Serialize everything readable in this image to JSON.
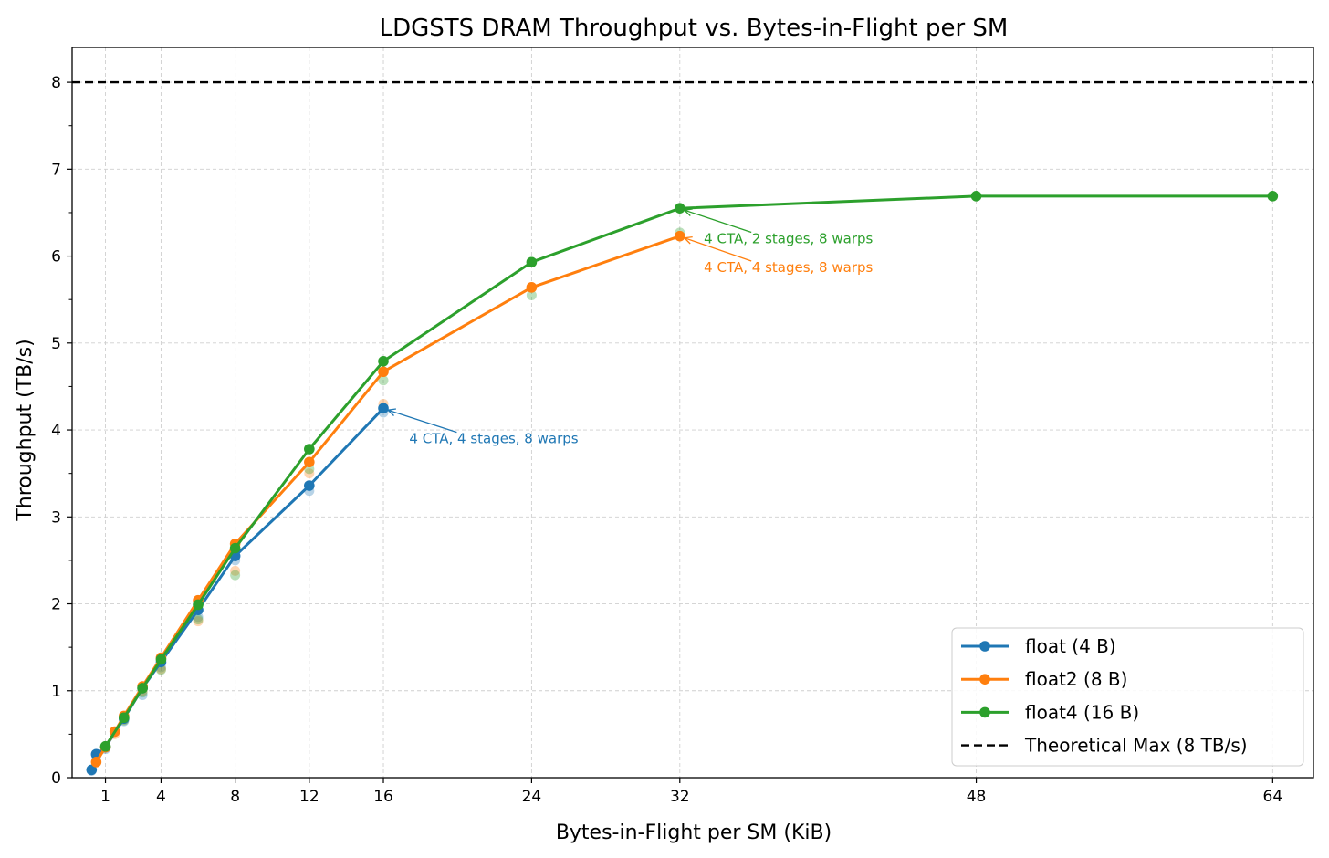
{
  "chart_data": {
    "type": "line",
    "title": "LDGSTS DRAM Throughput vs. Bytes-in-Flight per SM",
    "xlabel": "Bytes-in-Flight per SM (KiB)",
    "ylabel": "Throughput (TB/s)",
    "xlim": [
      -0.8,
      66.2
    ],
    "ylim": [
      0,
      8.4
    ],
    "xticks": [
      1,
      4,
      8,
      12,
      16,
      24,
      32,
      48,
      64
    ],
    "xtick_labels": [
      "1",
      "4",
      "8",
      "12",
      "16",
      "24",
      "32",
      "48",
      "64"
    ],
    "yticks": [
      0,
      1,
      2,
      3,
      4,
      5,
      6,
      7,
      8
    ],
    "ytick_labels": [
      "0",
      "1",
      "2",
      "3",
      "4",
      "5",
      "6",
      "7",
      "8"
    ],
    "grid": true,
    "legend_position": "bottom-right",
    "series": [
      {
        "name": "float (4 B)",
        "color": "#1f77b4",
        "x": [
          0.25,
          0.5,
          1,
          2,
          3,
          4,
          6,
          8,
          12,
          16
        ],
        "y": [
          0.09,
          0.27,
          0.35,
          0.68,
          1.03,
          1.33,
          1.93,
          2.55,
          3.36,
          4.25
        ],
        "scatter_x": [
          0.25,
          0.5,
          1,
          2,
          3,
          4,
          6,
          8,
          12,
          16
        ],
        "scatter_y": [
          0.08,
          0.25,
          0.33,
          0.65,
          0.95,
          1.27,
          1.85,
          2.5,
          3.3,
          4.2
        ]
      },
      {
        "name": "float2 (8 B)",
        "color": "#ff7f0e",
        "x": [
          0.5,
          1,
          1.5,
          2,
          3,
          4,
          6,
          8,
          12,
          16,
          24,
          32
        ],
        "y": [
          0.18,
          0.35,
          0.53,
          0.71,
          1.05,
          1.38,
          2.04,
          2.69,
          3.63,
          4.67,
          5.64,
          6.23
        ],
        "scatter_x": [
          1.5,
          2,
          3,
          4,
          6,
          8,
          12,
          16
        ],
        "scatter_y": [
          0.5,
          0.67,
          1.0,
          1.25,
          1.8,
          2.38,
          3.5,
          4.3
        ]
      },
      {
        "name": "float4 (16 B)",
        "color": "#2ca02c",
        "x": [
          1,
          2,
          3,
          4,
          6,
          8,
          12,
          16,
          24,
          32,
          48,
          64
        ],
        "y": [
          0.36,
          0.69,
          1.03,
          1.36,
          1.99,
          2.64,
          3.78,
          4.79,
          5.93,
          6.55,
          6.69,
          6.69
        ],
        "scatter_x": [
          2,
          3,
          4,
          6,
          8,
          12,
          16,
          24,
          32
        ],
        "scatter_y": [
          0.66,
          0.98,
          1.24,
          1.82,
          2.33,
          3.55,
          4.57,
          5.55,
          6.27
        ]
      }
    ],
    "reference_line": {
      "name": "Theoretical Max (8 TB/s)",
      "y": 8,
      "color": "#000000",
      "style": "dashed"
    },
    "annotations": [
      {
        "text": "4 CTA, 4 stages, 8 warps",
        "series": 0,
        "x": 16,
        "y": 4.25,
        "text_x": 17.4,
        "text_y": 3.9,
        "color": "#1f77b4"
      },
      {
        "text": "4 CTA, 4 stages, 8 warps",
        "series": 1,
        "x": 32,
        "y": 6.23,
        "text_x": 33.3,
        "text_y": 5.87,
        "color": "#ff7f0e"
      },
      {
        "text": "4 CTA, 2 stages, 8 warps",
        "series": 2,
        "x": 32,
        "y": 6.55,
        "text_x": 33.3,
        "text_y": 6.2,
        "color": "#2ca02c"
      }
    ]
  }
}
